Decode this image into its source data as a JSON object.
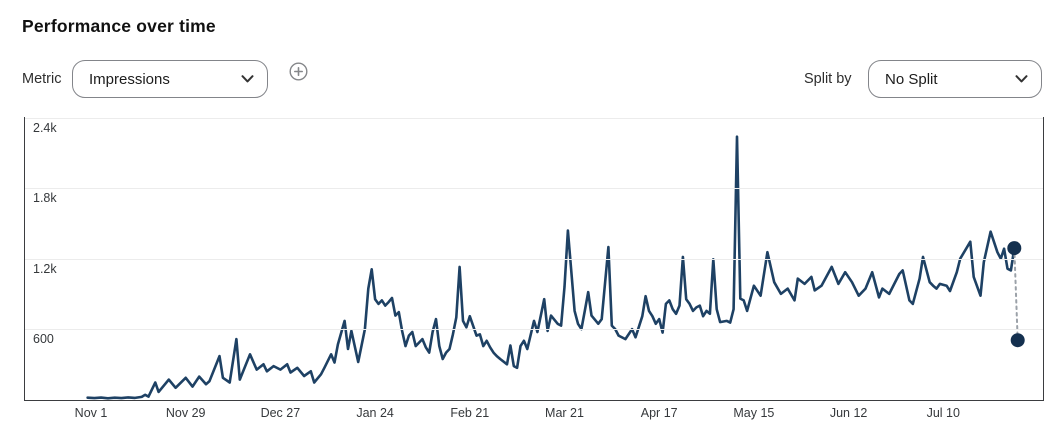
{
  "header": {
    "title": "Performance over time"
  },
  "controls": {
    "metric": {
      "label": "Metric",
      "value": "Impressions"
    },
    "add_metric_icon": "plus-circle-icon",
    "split_by": {
      "label": "Split by",
      "value": "No Split"
    }
  },
  "colors": {
    "line": "#1e4164",
    "marker": "#14304f",
    "connector": "#9ba1a8",
    "gridline": "#ececec",
    "axis": "#3b3d40"
  },
  "chart_data": {
    "type": "line",
    "title": "Performance over time",
    "metric": "Impressions",
    "legend_position": "none",
    "grid": "horizontal",
    "x_axis": {
      "unit": "day",
      "tick_labels": [
        "Nov 1",
        "Nov 29",
        "Dec 27",
        "Jan 24",
        "Feb 21",
        "Mar 21",
        "Apr 17",
        "May 15",
        "Jun 12",
        "Jul 10"
      ],
      "tick_days": [
        0,
        28,
        56,
        84,
        112,
        140,
        168,
        196,
        224,
        252
      ]
    },
    "y_axis": {
      "tick_values": [
        600,
        1200,
        1800,
        2400
      ],
      "tick_labels": [
        "600",
        "1.2k",
        "1.8k",
        "2.4k"
      ],
      "range": [
        0,
        2450
      ]
    },
    "series": [
      {
        "name": "Impressions",
        "color": "#1e4164",
        "points": [
          [
            -1,
            15
          ],
          [
            1,
            12
          ],
          [
            3,
            16
          ],
          [
            5,
            10
          ],
          [
            7,
            15
          ],
          [
            9,
            12
          ],
          [
            11,
            18
          ],
          [
            13,
            14
          ],
          [
            15,
            22
          ],
          [
            16,
            40
          ],
          [
            17,
            25
          ],
          [
            19,
            145
          ],
          [
            20,
            65
          ],
          [
            23,
            170
          ],
          [
            25,
            100
          ],
          [
            28,
            185
          ],
          [
            30,
            110
          ],
          [
            32,
            195
          ],
          [
            34,
            130
          ],
          [
            35,
            155
          ],
          [
            38,
            370
          ],
          [
            39,
            185
          ],
          [
            41,
            145
          ],
          [
            43,
            515
          ],
          [
            44,
            170
          ],
          [
            47,
            385
          ],
          [
            49,
            255
          ],
          [
            51,
            300
          ],
          [
            52,
            240
          ],
          [
            54,
            285
          ],
          [
            56,
            255
          ],
          [
            58,
            300
          ],
          [
            59,
            230
          ],
          [
            61,
            270
          ],
          [
            63,
            200
          ],
          [
            65,
            240
          ],
          [
            66,
            145
          ],
          [
            68,
            215
          ],
          [
            69,
            270
          ],
          [
            71,
            385
          ],
          [
            72,
            315
          ],
          [
            73,
            470
          ],
          [
            75,
            670
          ],
          [
            76,
            430
          ],
          [
            77,
            585
          ],
          [
            79,
            320
          ],
          [
            81,
            600
          ],
          [
            82,
            945
          ],
          [
            83,
            1110
          ],
          [
            84,
            855
          ],
          [
            85,
            815
          ],
          [
            86,
            845
          ],
          [
            87,
            800
          ],
          [
            88,
            830
          ],
          [
            89,
            865
          ],
          [
            90,
            715
          ],
          [
            91,
            745
          ],
          [
            92,
            585
          ],
          [
            93,
            455
          ],
          [
            94,
            545
          ],
          [
            95,
            575
          ],
          [
            96,
            455
          ],
          [
            98,
            515
          ],
          [
            99,
            445
          ],
          [
            100,
            400
          ],
          [
            101,
            575
          ],
          [
            102,
            685
          ],
          [
            103,
            455
          ],
          [
            104,
            345
          ],
          [
            105,
            400
          ],
          [
            106,
            430
          ],
          [
            107,
            555
          ],
          [
            108,
            700
          ],
          [
            109,
            1130
          ],
          [
            110,
            670
          ],
          [
            111,
            615
          ],
          [
            112,
            710
          ],
          [
            114,
            545
          ],
          [
            115,
            555
          ],
          [
            116,
            455
          ],
          [
            117,
            500
          ],
          [
            118,
            445
          ],
          [
            119,
            400
          ],
          [
            120,
            370
          ],
          [
            121,
            345
          ],
          [
            123,
            300
          ],
          [
            124,
            460
          ],
          [
            125,
            285
          ],
          [
            126,
            270
          ],
          [
            127,
            455
          ],
          [
            128,
            500
          ],
          [
            129,
            430
          ],
          [
            131,
            670
          ],
          [
            132,
            575
          ],
          [
            134,
            855
          ],
          [
            135,
            585
          ],
          [
            136,
            715
          ],
          [
            138,
            645
          ],
          [
            139,
            630
          ],
          [
            140,
            960
          ],
          [
            141,
            1440
          ],
          [
            143,
            755
          ],
          [
            144,
            645
          ],
          [
            145,
            600
          ],
          [
            146,
            755
          ],
          [
            147,
            915
          ],
          [
            148,
            715
          ],
          [
            150,
            645
          ],
          [
            151,
            685
          ],
          [
            153,
            1300
          ],
          [
            154,
            630
          ],
          [
            155,
            600
          ],
          [
            156,
            545
          ],
          [
            158,
            515
          ],
          [
            160,
            600
          ],
          [
            161,
            530
          ],
          [
            163,
            710
          ],
          [
            164,
            880
          ],
          [
            165,
            755
          ],
          [
            166,
            710
          ],
          [
            167,
            645
          ],
          [
            168,
            685
          ],
          [
            169,
            570
          ],
          [
            170,
            815
          ],
          [
            171,
            845
          ],
          [
            172,
            770
          ],
          [
            173,
            730
          ],
          [
            174,
            800
          ],
          [
            175,
            1215
          ],
          [
            176,
            855
          ],
          [
            177,
            815
          ],
          [
            178,
            755
          ],
          [
            179,
            785
          ],
          [
            180,
            800
          ],
          [
            181,
            710
          ],
          [
            182,
            755
          ],
          [
            183,
            730
          ],
          [
            184,
            1195
          ],
          [
            185,
            770
          ],
          [
            186,
            660
          ],
          [
            188,
            670
          ],
          [
            189,
            655
          ],
          [
            190,
            770
          ],
          [
            191,
            2240
          ],
          [
            192,
            860
          ],
          [
            193,
            845
          ],
          [
            194,
            755
          ],
          [
            196,
            970
          ],
          [
            198,
            885
          ],
          [
            200,
            1255
          ],
          [
            202,
            1000
          ],
          [
            204,
            900
          ],
          [
            206,
            945
          ],
          [
            208,
            845
          ],
          [
            209,
            1030
          ],
          [
            211,
            985
          ],
          [
            213,
            1045
          ],
          [
            214,
            930
          ],
          [
            216,
            970
          ],
          [
            219,
            1130
          ],
          [
            221,
            985
          ],
          [
            223,
            1085
          ],
          [
            225,
            1000
          ],
          [
            227,
            885
          ],
          [
            229,
            945
          ],
          [
            231,
            1085
          ],
          [
            233,
            870
          ],
          [
            234,
            945
          ],
          [
            236,
            900
          ],
          [
            239,
            1070
          ],
          [
            240,
            1100
          ],
          [
            242,
            845
          ],
          [
            243,
            815
          ],
          [
            245,
            1030
          ],
          [
            246,
            1215
          ],
          [
            248,
            1000
          ],
          [
            249,
            970
          ],
          [
            250,
            945
          ],
          [
            251,
            985
          ],
          [
            253,
            970
          ],
          [
            254,
            925
          ],
          [
            256,
            1085
          ],
          [
            257,
            1200
          ],
          [
            260,
            1345
          ],
          [
            261,
            1045
          ],
          [
            263,
            885
          ],
          [
            264,
            1170
          ],
          [
            266,
            1430
          ],
          [
            268,
            1255
          ],
          [
            269,
            1200
          ],
          [
            270,
            1285
          ],
          [
            271,
            1115
          ],
          [
            272,
            1100
          ],
          [
            273,
            1290
          ]
        ]
      }
    ],
    "projected_point": {
      "day": 274,
      "value": 505,
      "connector_style": "dashed"
    }
  }
}
